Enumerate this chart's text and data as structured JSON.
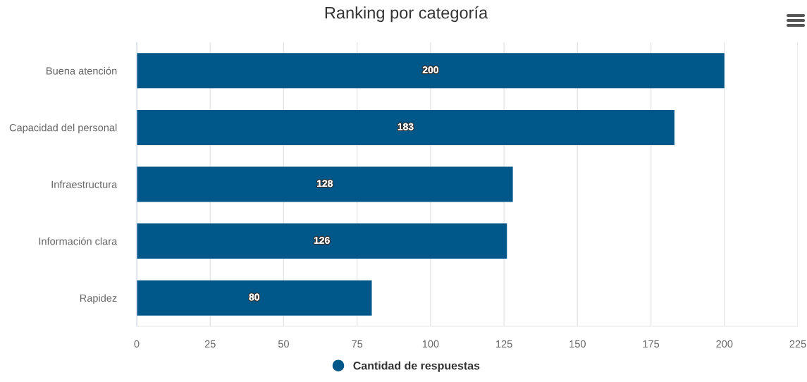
{
  "chart_data": {
    "type": "bar",
    "orientation": "horizontal",
    "title": "Ranking por categoría",
    "categories": [
      "Buena atención",
      "Capacidad del personal",
      "Infraestructura",
      "Información clara",
      "Rapidez"
    ],
    "series": [
      {
        "name": "Cantidad de respuestas",
        "color": "#00578a",
        "values": [
          200,
          183,
          128,
          126,
          80
        ]
      }
    ],
    "xlim": [
      0,
      225
    ],
    "xticks": [
      0,
      25,
      50,
      75,
      100,
      125,
      150,
      175,
      200,
      225
    ],
    "grid": "x",
    "legend": "bottom",
    "data_labels": true
  }
}
